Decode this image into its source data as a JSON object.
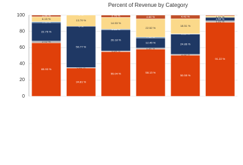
{
  "chart_data": {
    "type": "stacked_bar",
    "title": "Percent of Revenue by Category",
    "categories": [
      null,
      null,
      null,
      null,
      null,
      null
    ],
    "ylim": [
      0,
      100
    ],
    "yticks": [
      0,
      20,
      40,
      60,
      80,
      100
    ],
    "grid": true,
    "series": [
      {
        "color": "#e0400a",
        "values": [
          65.93,
          34.81,
          55.04,
          58.13,
          50.55,
          91.22
        ],
        "value_labels": [
          "65.93 %",
          "34.81 %",
          "55.04 %",
          "58.13 %",
          "50.55 %",
          "91.22 %"
        ]
      },
      {
        "color": "#b8b8b8",
        "values": [
          2.02,
          0.63,
          0.84,
          1.3,
          1.16,
          1.91
        ],
        "value_labels": [
          "2.02 %",
          "0.63 %",
          "0.84 %",
          "1.30 %",
          "1.16 %",
          "1.91 %"
        ]
      },
      {
        "color": "#1f3864",
        "values": [
          22.75,
          50.77,
          26.18,
          12.45,
          24.86,
          4.05
        ],
        "value_labels": [
          "22.75 %",
          "50.77 %",
          "26.18 %",
          "12.45 %",
          "24.86 %",
          "4.05 %"
        ]
      },
      {
        "color": "#4a7fb0",
        "values": [
          1.16,
          0,
          0.65,
          1.0,
          0.5,
          0
        ],
        "value_labels": [
          "1.16 %",
          "0 %",
          "0.65 %",
          "1.00 %",
          "0.50 %",
          "0 %"
        ]
      },
      {
        "color": "#fbd98a",
        "values": [
          6.15,
          13.79,
          14.53,
          22.52,
          18.51,
          1.91
        ],
        "value_labels": [
          "6.15 %",
          "13.79 %",
          "14.53 %",
          "22.52 %",
          "18.51 %",
          "1.91 %"
        ]
      },
      {
        "color": "#c0502a",
        "values": [
          1.99,
          0,
          2.76,
          4.6,
          4.42,
          0.91
        ],
        "value_labels": [
          "1.99 %",
          "0 %",
          "2.76 %",
          "4.60 %",
          "4.42 %",
          "0.91 %"
        ]
      }
    ]
  }
}
